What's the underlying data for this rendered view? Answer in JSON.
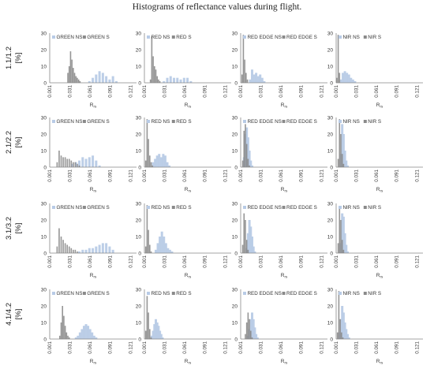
{
  "title": "Histograms of reflectance values during flight.",
  "colors": {
    "ns": "#b8cbe6",
    "s": "#8a8a8a",
    "axis": "#888888"
  },
  "chart_data": {
    "type": "bar",
    "xlabel": "R",
    "xlabel_sub": "rs",
    "ylim": [
      0,
      30
    ],
    "yticks": [
      0,
      10,
      20,
      30
    ],
    "xlim": [
      0.001,
      0.13
    ],
    "xticks": [
      "0.001",
      "0.031",
      "0.061",
      "0.091",
      "0.121"
    ],
    "rows": [
      {
        "label": "1.1/1.2",
        "unit": "[%]",
        "panels": [
          {
            "band": "GREEN",
            "legend": [
              "GREEN NS",
              "GREEN S"
            ],
            "series": [
              {
                "name": "GREEN NS",
                "x": [
                  0.06,
                  0.065,
                  0.07,
                  0.075,
                  0.08,
                  0.085,
                  0.09,
                  0.095,
                  0.1
                ],
                "y": [
                  1,
                  3,
                  5,
                  7,
                  6,
                  4,
                  2,
                  4,
                  1
                ]
              },
              {
                "name": "GREEN S",
                "x": [
                  0.028,
                  0.03,
                  0.032,
                  0.034,
                  0.036,
                  0.038,
                  0.04,
                  0.042,
                  0.044,
                  0.046
                ],
                "y": [
                  6,
                  10,
                  19,
                  14,
                  9,
                  6,
                  4,
                  3,
                  2,
                  1
                ]
              }
            ]
          },
          {
            "band": "RED",
            "legend": [
              "RED NS",
              "RED S"
            ],
            "series": [
              {
                "name": "RED NS",
                "x": [
                  0.03,
                  0.035,
                  0.04,
                  0.045,
                  0.05,
                  0.055,
                  0.06,
                  0.065,
                  0.07
                ],
                "y": [
                  1,
                  3,
                  4,
                  3,
                  3,
                  2,
                  3,
                  3,
                  1
                ]
              },
              {
                "name": "RED S",
                "x": [
                  0.01,
                  0.012,
                  0.014,
                  0.016,
                  0.018,
                  0.02,
                  0.022,
                  0.024
                ],
                "y": [
                  2,
                  28,
                  16,
                  10,
                  8,
                  4,
                  2,
                  1
                ]
              }
            ]
          },
          {
            "band": "RED EDGE",
            "legend": [
              "RED EDGE NS",
              "RED EDGE S"
            ],
            "series": [
              {
                "name": "RED EDGE NS",
                "x": [
                  0.015,
                  0.018,
                  0.021,
                  0.024,
                  0.027,
                  0.03,
                  0.033,
                  0.036
                ],
                "y": [
                  2,
                  8,
                  5,
                  6,
                  4,
                  5,
                  3,
                  1
                ]
              },
              {
                "name": "RED EDGE S",
                "x": [
                  0.003,
                  0.005,
                  0.007,
                  0.009,
                  0.011
                ],
                "y": [
                  5,
                  29,
                  14,
                  6,
                  2
                ]
              }
            ]
          },
          {
            "band": "NIR",
            "legend": [
              "NIR NS",
              "NIR S"
            ],
            "series": [
              {
                "name": "NIR NS",
                "x": [
                  0.008,
                  0.011,
                  0.014,
                  0.017,
                  0.02,
                  0.023,
                  0.026,
                  0.029
                ],
                "y": [
                  2,
                  6,
                  7,
                  6,
                  5,
                  3,
                  2,
                  1
                ]
              },
              {
                "name": "NIR S",
                "x": [
                  0.002,
                  0.004,
                  0.006
                ],
                "y": [
                  3,
                  29,
                  6
                ]
              }
            ]
          }
        ]
      },
      {
        "label": "2.1/2.2",
        "unit": "[%]",
        "panels": [
          {
            "band": "GREEN",
            "legend": [
              "GREEN NS",
              "GREEN S"
            ],
            "series": [
              {
                "name": "GREEN NS",
                "x": [
                  0.035,
                  0.04,
                  0.045,
                  0.05,
                  0.055,
                  0.06,
                  0.065,
                  0.07,
                  0.075
                ],
                "y": [
                  2,
                  3,
                  4,
                  6,
                  5,
                  6,
                  7,
                  4,
                  1
                ]
              },
              {
                "name": "GREEN S",
                "x": [
                  0.012,
                  0.015,
                  0.018,
                  0.021,
                  0.024,
                  0.027,
                  0.03,
                  0.033,
                  0.036,
                  0.039,
                  0.042,
                  0.045
                ],
                "y": [
                  3,
                  10,
                  7,
                  6,
                  6,
                  5,
                  5,
                  4,
                  3,
                  3,
                  2,
                  1
                ]
              }
            ]
          },
          {
            "band": "RED",
            "legend": [
              "RED NS",
              "RED S"
            ],
            "series": [
              {
                "name": "RED NS",
                "x": [
                  0.014,
                  0.017,
                  0.02,
                  0.023,
                  0.026,
                  0.029,
                  0.032,
                  0.035,
                  0.038
                ],
                "y": [
                  3,
                  5,
                  7,
                  8,
                  6,
                  8,
                  7,
                  3,
                  1
                ]
              },
              {
                "name": "RED S",
                "x": [
                  0.003,
                  0.005,
                  0.007,
                  0.009,
                  0.011,
                  0.013
                ],
                "y": [
                  4,
                  29,
                  17,
                  7,
                  3,
                  1
                ]
              }
            ]
          },
          {
            "band": "RED EDGE",
            "legend": [
              "RED EDGE NS",
              "RED EDGE S"
            ],
            "series": [
              {
                "name": "RED EDGE NS",
                "x": [
                  0.006,
                  0.008,
                  0.01,
                  0.012,
                  0.014,
                  0.016,
                  0.018
                ],
                "y": [
                  6,
                  20,
                  24,
                  18,
                  10,
                  4,
                  1
                ]
              },
              {
                "name": "RED EDGE S",
                "x": [
                  0.004,
                  0.006,
                  0.008,
                  0.01,
                  0.012,
                  0.014
                ],
                "y": [
                  4,
                  22,
                  26,
                  14,
                  5,
                  1
                ]
              }
            ]
          },
          {
            "band": "NIR",
            "legend": [
              "NIR NS",
              "NIR S"
            ],
            "series": [
              {
                "name": "NIR NS",
                "x": [
                  0.008,
                  0.01,
                  0.012,
                  0.014,
                  0.016,
                  0.018
                ],
                "y": [
                  8,
                  26,
                  20,
                  10,
                  4,
                  1
                ]
              },
              {
                "name": "NIR S",
                "x": [
                  0.004,
                  0.006,
                  0.008,
                  0.01,
                  0.012
                ],
                "y": [
                  5,
                  29,
                  20,
                  8,
                  2
                ]
              }
            ]
          }
        ]
      },
      {
        "label": "3.1/3.2",
        "unit": "[%]",
        "panels": [
          {
            "band": "GREEN",
            "legend": [
              "GREEN NS",
              "GREEN S"
            ],
            "series": [
              {
                "name": "GREEN NS",
                "x": [
                  0.045,
                  0.05,
                  0.055,
                  0.06,
                  0.065,
                  0.07,
                  0.075,
                  0.08,
                  0.085,
                  0.09,
                  0.095
                ],
                "y": [
                  1,
                  2,
                  2,
                  3,
                  3,
                  4,
                  5,
                  6,
                  6,
                  4,
                  2
                ]
              },
              {
                "name": "GREEN S",
                "x": [
                  0.012,
                  0.015,
                  0.018,
                  0.021,
                  0.024,
                  0.027,
                  0.03,
                  0.033,
                  0.036,
                  0.039,
                  0.042
                ],
                "y": [
                  4,
                  15,
                  10,
                  8,
                  6,
                  5,
                  4,
                  3,
                  2,
                  2,
                  1
                ]
              }
            ]
          },
          {
            "band": "RED",
            "legend": [
              "RED NS",
              "RED S"
            ],
            "series": [
              {
                "name": "RED NS",
                "x": [
                  0.018,
                  0.021,
                  0.024,
                  0.027,
                  0.03,
                  0.033,
                  0.036,
                  0.039,
                  0.042
                ],
                "y": [
                  2,
                  6,
                  10,
                  13,
                  10,
                  6,
                  3,
                  2,
                  1
                ]
              },
              {
                "name": "RED S",
                "x": [
                  0.003,
                  0.005,
                  0.007,
                  0.009,
                  0.011
                ],
                "y": [
                  4,
                  29,
                  14,
                  5,
                  1
                ]
              }
            ]
          },
          {
            "band": "RED EDGE",
            "legend": [
              "RED EDGE NS",
              "RED EDGE S"
            ],
            "series": [
              {
                "name": "RED EDGE NS",
                "x": [
                  0.01,
                  0.012,
                  0.014,
                  0.016,
                  0.018,
                  0.02,
                  0.022
                ],
                "y": [
                  3,
                  12,
                  20,
                  16,
                  10,
                  4,
                  1
                ]
              },
              {
                "name": "RED EDGE S",
                "x": [
                  0.004,
                  0.006,
                  0.008,
                  0.01,
                  0.012
                ],
                "y": [
                  5,
                  24,
                  20,
                  8,
                  2
                ]
              }
            ]
          },
          {
            "band": "NIR",
            "legend": [
              "NIR NS",
              "NIR S"
            ],
            "series": [
              {
                "name": "NIR NS",
                "x": [
                  0.008,
                  0.01,
                  0.012,
                  0.014,
                  0.016,
                  0.018
                ],
                "y": [
                  6,
                  24,
                  22,
                  12,
                  5,
                  1
                ]
              },
              {
                "name": "NIR S",
                "x": [
                  0.004,
                  0.006,
                  0.008,
                  0.01,
                  0.012
                ],
                "y": [
                  6,
                  28,
                  20,
                  8,
                  2
                ]
              }
            ]
          }
        ]
      },
      {
        "label": "4.1/4.2",
        "unit": "[%]",
        "panels": [
          {
            "band": "GREEN",
            "legend": [
              "GREEN NS",
              "GREEN S"
            ],
            "series": [
              {
                "name": "GREEN NS",
                "x": [
                  0.04,
                  0.043,
                  0.046,
                  0.049,
                  0.052,
                  0.055,
                  0.058,
                  0.061,
                  0.064,
                  0.067,
                  0.07
                ],
                "y": [
                  1,
                  2,
                  4,
                  6,
                  8,
                  9,
                  8,
                  6,
                  4,
                  2,
                  1
                ]
              },
              {
                "name": "GREEN S",
                "x": [
                  0.016,
                  0.018,
                  0.02,
                  0.022,
                  0.024,
                  0.026,
                  0.028,
                  0.03
                ],
                "y": [
                  2,
                  10,
                  20,
                  14,
                  8,
                  4,
                  2,
                  1
                ]
              }
            ]
          },
          {
            "band": "RED",
            "legend": [
              "RED NS",
              "RED S"
            ],
            "series": [
              {
                "name": "RED NS",
                "x": [
                  0.012,
                  0.014,
                  0.016,
                  0.018,
                  0.02,
                  0.022,
                  0.024,
                  0.026,
                  0.028
                ],
                "y": [
                  2,
                  5,
                  9,
                  12,
                  10,
                  8,
                  5,
                  3,
                  1
                ]
              },
              {
                "name": "RED S",
                "x": [
                  0.003,
                  0.005,
                  0.007,
                  0.009,
                  0.011
                ],
                "y": [
                  5,
                  26,
                  16,
                  6,
                  1
                ]
              }
            ]
          },
          {
            "band": "RED EDGE",
            "legend": [
              "RED EDGE NS",
              "RED EDGE S"
            ],
            "series": [
              {
                "name": "RED EDGE NS",
                "x": [
                  0.012,
                  0.014,
                  0.016,
                  0.018,
                  0.02,
                  0.022,
                  0.024,
                  0.026
                ],
                "y": [
                  2,
                  6,
                  12,
                  16,
                  12,
                  7,
                  3,
                  1
                ]
              },
              {
                "name": "RED EDGE S",
                "x": [
                  0.008,
                  0.01,
                  0.012,
                  0.014,
                  0.016,
                  0.018
                ],
                "y": [
                  3,
                  10,
                  16,
                  12,
                  5,
                  1
                ]
              }
            ]
          },
          {
            "band": "NIR",
            "legend": [
              "NIR NS",
              "NIR S"
            ],
            "series": [
              {
                "name": "NIR NS",
                "x": [
                  0.006,
                  0.008,
                  0.01,
                  0.012,
                  0.014,
                  0.016,
                  0.018,
                  0.02
                ],
                "y": [
                  4,
                  12,
                  20,
                  16,
                  10,
                  6,
                  3,
                  1
                ]
              },
              {
                "name": "NIR S",
                "x": [
                  0.003,
                  0.005,
                  0.007,
                  0.009,
                  0.011
                ],
                "y": [
                  4,
                  29,
                  12,
                  4,
                  1
                ]
              }
            ]
          }
        ]
      }
    ]
  }
}
